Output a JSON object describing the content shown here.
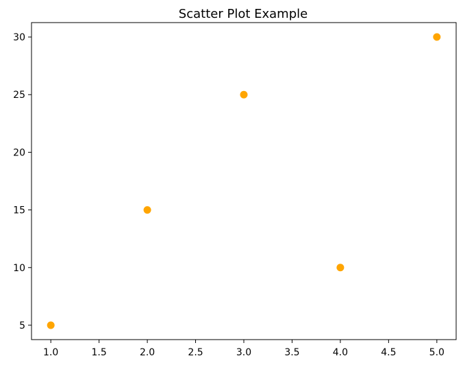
{
  "chart_data": {
    "type": "scatter",
    "title": "Scatter Plot Example",
    "xlabel": "",
    "ylabel": "",
    "x": [
      1,
      2,
      3,
      4,
      5
    ],
    "y": [
      5,
      15,
      25,
      10,
      30
    ],
    "xlim": [
      0.8,
      5.2
    ],
    "ylim": [
      3.75,
      31.25
    ],
    "xticks": [
      1.0,
      1.5,
      2.0,
      2.5,
      3.0,
      3.5,
      4.0,
      4.5,
      5.0
    ],
    "xtick_labels": [
      "1.0",
      "1.5",
      "2.0",
      "2.5",
      "3.0",
      "3.5",
      "4.0",
      "4.5",
      "5.0"
    ],
    "yticks": [
      5,
      10,
      15,
      20,
      25,
      30
    ],
    "ytick_labels": [
      "5",
      "10",
      "15",
      "20",
      "25",
      "30"
    ],
    "marker_color": "#ffa500",
    "grid": false,
    "legend": false
  }
}
